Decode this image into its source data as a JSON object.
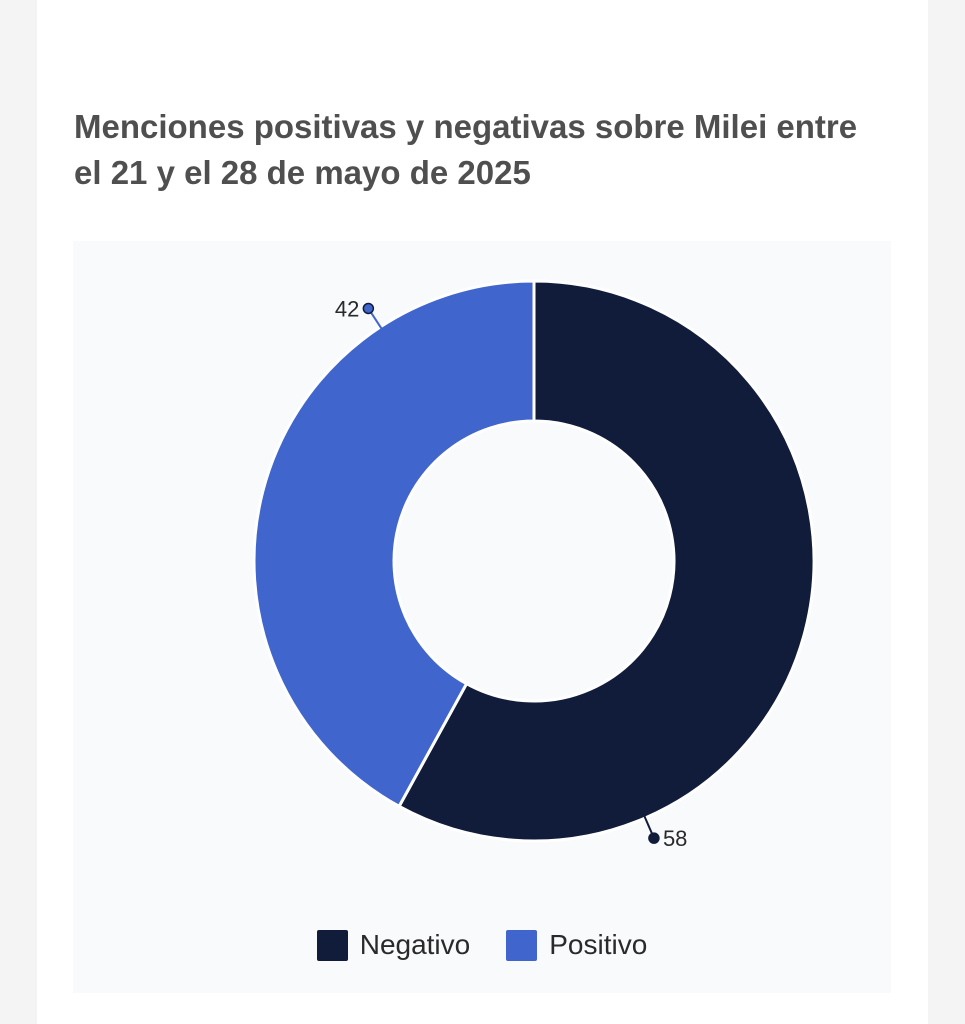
{
  "title": "Menciones positivas y negativas sobre Milei entre el 21 y el 28 de mayo de 2025",
  "chart_data": {
    "type": "pie",
    "donut": true,
    "title": "Menciones positivas y negativas sobre Milei entre el 21 y el 28 de mayo de 2025",
    "legend_position": "bottom",
    "slices": [
      {
        "name": "Negativo",
        "value": 58,
        "label": "58",
        "color": "#111c3b"
      },
      {
        "name": "Positivo",
        "value": 42,
        "label": "42",
        "color": "#4065cc"
      }
    ]
  }
}
